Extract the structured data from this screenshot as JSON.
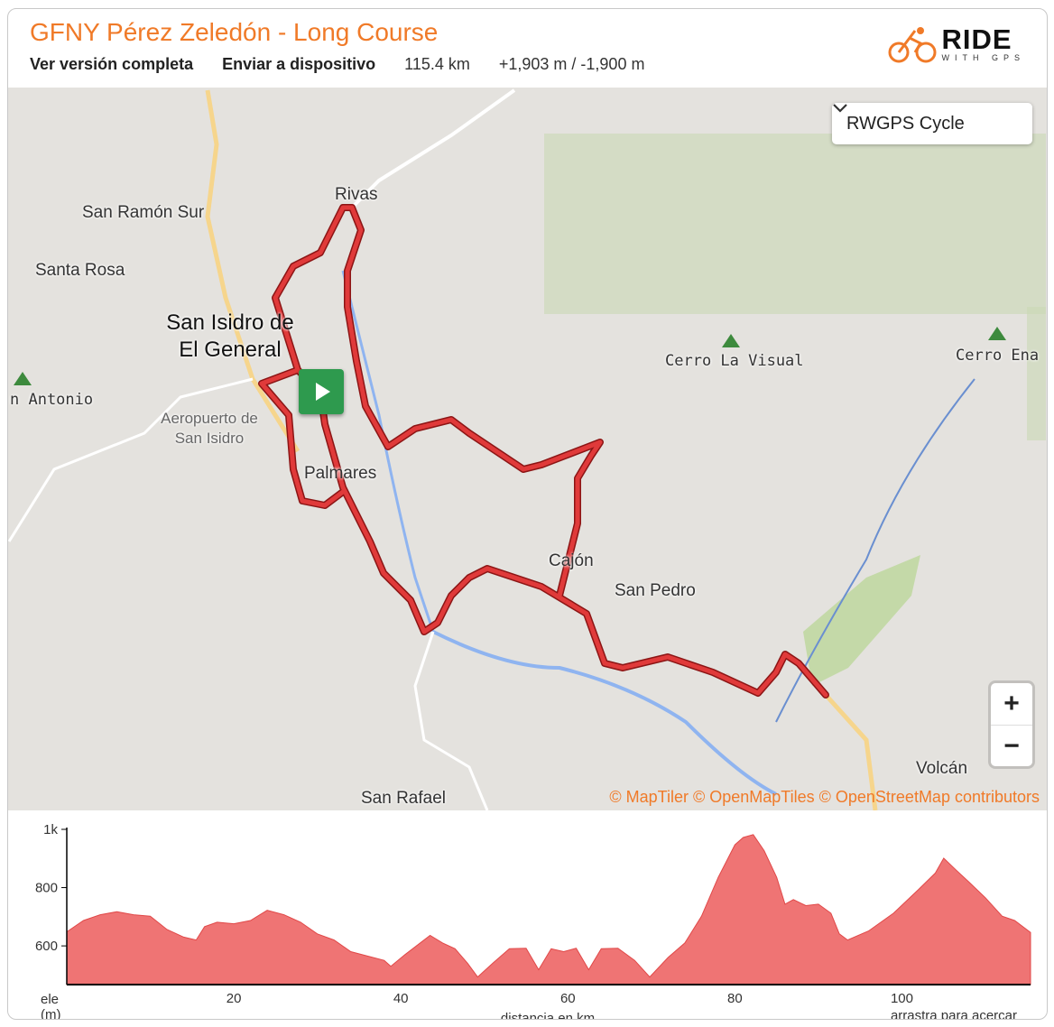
{
  "header": {
    "title": "GFNY Pérez Zeledón - Long Course",
    "full_version": "Ver versión completa",
    "send_device": "Enviar a dispositivo",
    "distance": "115.4 km",
    "elevation": "+1,903 m / -1,900 m"
  },
  "logo": {
    "ride": "RIDE",
    "with_gps": "WITH GPS",
    "accent": "#f07a28"
  },
  "map": {
    "layer_select": "RWGPS Cycle",
    "zoom_in": "+",
    "zoom_out": "−",
    "attribution": "© MapTiler © OpenMapTiles © OpenStreetMap contributors",
    "route_color": "#d62f2f",
    "labels": {
      "rivas": "Rivas",
      "san_ramon": "San Ramón Sur",
      "santa_rosa": "Santa Rosa",
      "san_isidro": "San Isidro de El General",
      "aeropuerto": "Aeropuerto de San Isidro",
      "palmares": "Palmares",
      "cerro_visual": "Cerro La Visual",
      "cerro_ena": "Cerro Ena",
      "antonio": "n Antonio",
      "cajon": "Cajón",
      "san_pedro": "San Pedro",
      "san_rafael": "San Rafael",
      "volcan": "Volcán"
    }
  },
  "chart_data": {
    "type": "area",
    "xlabel": "distancia en km",
    "ylabel": "ele (m)",
    "hint": "arrastra para acercar",
    "x_ticks": [
      "20",
      "40",
      "60",
      "80",
      "100"
    ],
    "y_ticks": [
      "600",
      "800",
      "1k"
    ],
    "xlim": [
      0,
      115.4
    ],
    "ylim": [
      467,
      1000
    ],
    "color": "#ef7474",
    "x": [
      0,
      2,
      4,
      6,
      8,
      10,
      12,
      14,
      15.5,
      16.5,
      18,
      20,
      22,
      24,
      26,
      28,
      30,
      32,
      34,
      36,
      38,
      38.8,
      40.5,
      43.5,
      45,
      46.5,
      48,
      49.2,
      51,
      53,
      55,
      56.5,
      58,
      59.5,
      61,
      62.5,
      64,
      66,
      68,
      69.8,
      72,
      74,
      76,
      78,
      80,
      81,
      82.2,
      83.5,
      85,
      86,
      87,
      88.5,
      90,
      91.5,
      92.5,
      93.5,
      96,
      99,
      102,
      104,
      105,
      106.5,
      108,
      110,
      112,
      113.5,
      115.4
    ],
    "y": [
      648,
      687,
      707,
      717,
      707,
      702,
      656,
      630,
      620,
      666,
      681,
      676,
      687,
      722,
      707,
      681,
      641,
      620,
      580,
      565,
      550,
      530,
      570,
      636,
      610,
      590,
      540,
      493,
      540,
      590,
      592,
      518,
      590,
      580,
      592,
      518,
      590,
      592,
      550,
      493,
      560,
      610,
      702,
      835,
      947,
      972,
      982,
      927,
      835,
      743,
      759,
      738,
      743,
      712,
      641,
      620,
      651,
      712,
      794,
      850,
      901,
      860,
      820,
      765,
      702,
      687,
      646
    ]
  }
}
